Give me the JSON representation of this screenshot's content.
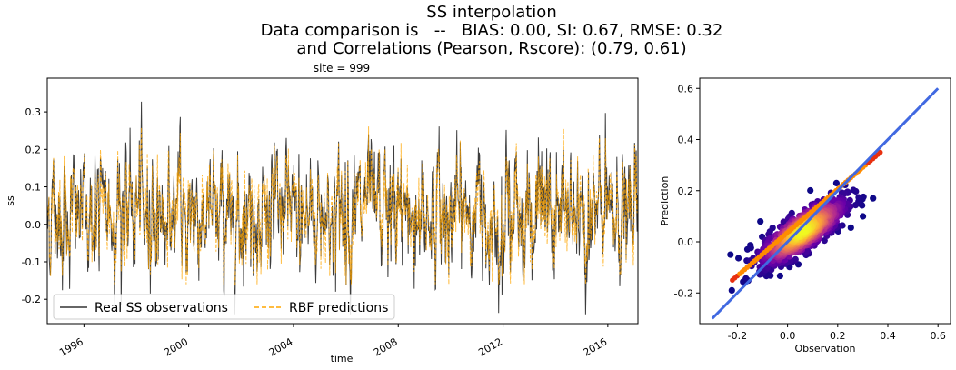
{
  "figure": {
    "title_lines": [
      "SS interpolation",
      "Data comparison is   --   BIAS: 0.00, SI: 0.67, RMSE: 0.32",
      "and Correlations (Pearson, Rscore): (0.79, 0.61)"
    ]
  },
  "chart_data": [
    {
      "type": "line",
      "title": "site = 999",
      "xlabel": "time",
      "ylabel": "ss",
      "x_ticks": [
        "1996",
        "2000",
        "2004",
        "2008",
        "2012",
        "2016"
      ],
      "xlim": [
        1994.6,
        2017.15
      ],
      "ylim": [
        -0.265,
        0.39
      ],
      "y_ticks": [
        "-0.2",
        "-0.1",
        "0.0",
        "0.1",
        "0.2",
        "0.3"
      ],
      "legend_position": "lower-left",
      "series": [
        {
          "name": "Real SS observations",
          "color": "#333333",
          "style": "solid",
          "mean": 0.03,
          "std": 0.085,
          "min": -0.24,
          "max": 0.34
        },
        {
          "name": "RBF predictions",
          "color": "#ffa500",
          "style": "dashed",
          "mean": 0.03,
          "std": 0.075,
          "min": -0.16,
          "max": 0.36
        }
      ]
    },
    {
      "type": "scatter",
      "xlabel": "Observation",
      "ylabel": "Prediction",
      "xlim": [
        -0.35,
        0.65
      ],
      "ylim": [
        -0.32,
        0.64
      ],
      "x_ticks": [
        "-0.2",
        "0.0",
        "0.2",
        "0.4",
        "0.6"
      ],
      "y_ticks": [
        "-0.2",
        "0.0",
        "0.2",
        "0.4",
        "0.6"
      ],
      "identity_line": {
        "from": [
          -0.3,
          -0.3
        ],
        "to": [
          0.6,
          0.6
        ],
        "color": "#4169e1"
      },
      "trend_line": {
        "from": [
          -0.22,
          -0.15
        ],
        "to": [
          0.37,
          0.35
        ],
        "color": "#ff8c00"
      },
      "point_cloud": {
        "x_range": [
          -0.25,
          0.38
        ],
        "y_range": [
          -0.2,
          0.28
        ],
        "correlation": 0.79
      },
      "colormap": [
        "#0d0887",
        "#6a00a8",
        "#b12a90",
        "#e16462",
        "#fca636",
        "#f0f921"
      ]
    }
  ]
}
